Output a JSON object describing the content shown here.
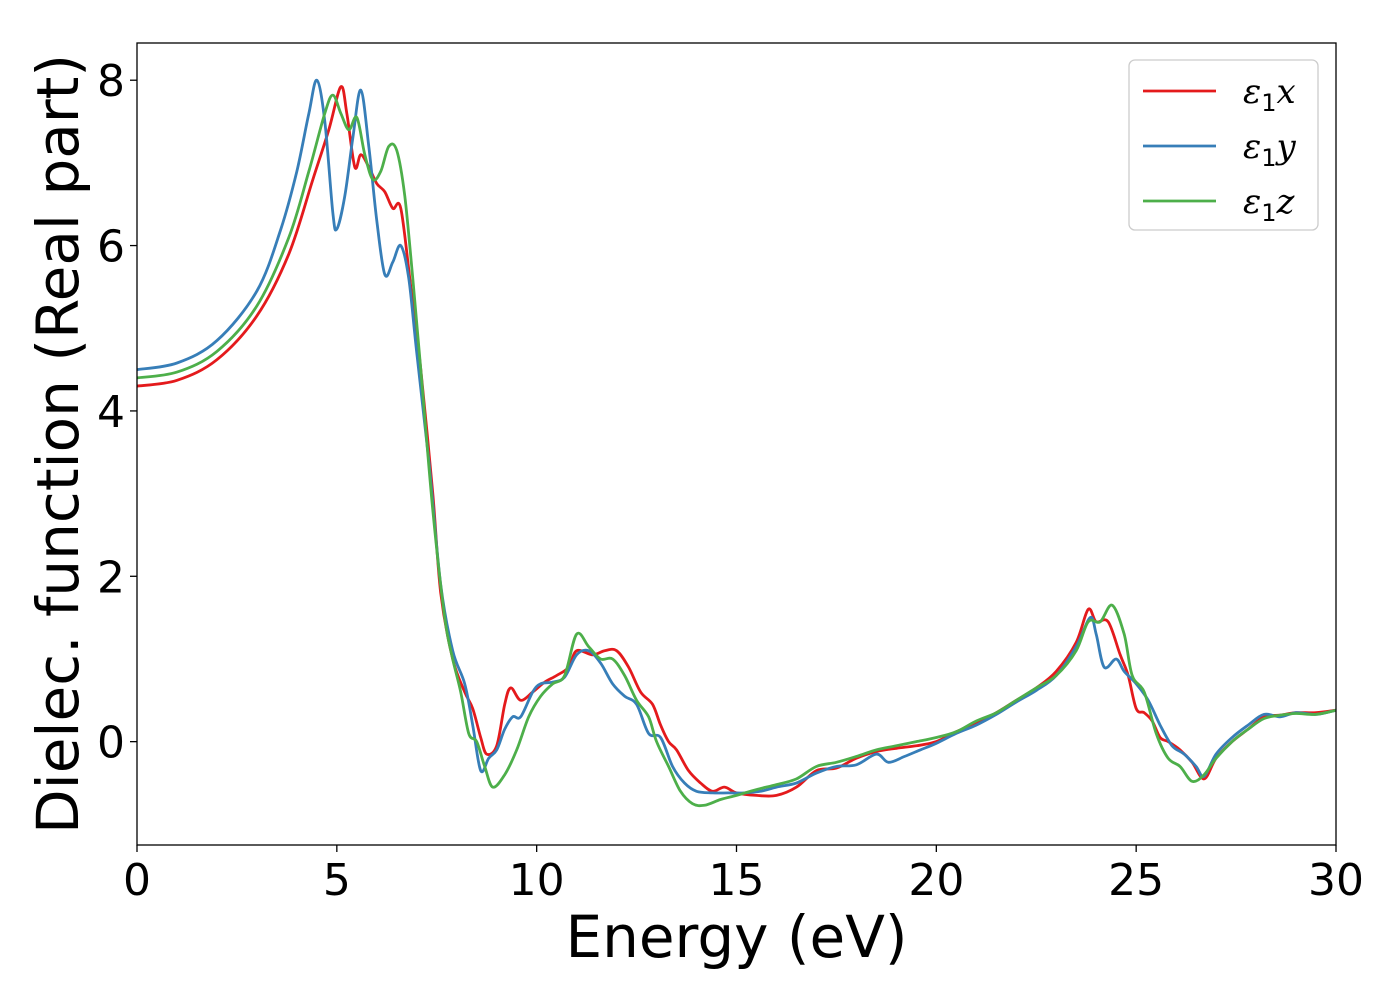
{
  "chart_data": {
    "type": "line",
    "xlabel": "Energy (eV)",
    "ylabel": "Dielec. function (Real part)",
    "xlim": [
      0,
      30
    ],
    "ylim": [
      -1.25,
      8.45
    ],
    "xticks": [
      0,
      5,
      10,
      15,
      20,
      25,
      30
    ],
    "yticks": [
      0,
      2,
      4,
      6,
      8
    ],
    "grid": false,
    "legend_position": "top-right",
    "series": [
      {
        "name": "ε1x",
        "symbol": "ε",
        "subscript": "1",
        "suffix": "x",
        "color": "#e41a1c",
        "points": [
          [
            0,
            4.3
          ],
          [
            1,
            4.37
          ],
          [
            2,
            4.62
          ],
          [
            3,
            5.15
          ],
          [
            3.8,
            5.9
          ],
          [
            4.4,
            6.8
          ],
          [
            4.8,
            7.4
          ],
          [
            5.1,
            7.92
          ],
          [
            5.25,
            7.6
          ],
          [
            5.45,
            6.95
          ],
          [
            5.6,
            7.1
          ],
          [
            5.8,
            6.95
          ],
          [
            6.0,
            6.75
          ],
          [
            6.2,
            6.65
          ],
          [
            6.4,
            6.45
          ],
          [
            6.6,
            6.45
          ],
          [
            6.85,
            5.5
          ],
          [
            7.1,
            4.5
          ],
          [
            7.4,
            3.0
          ],
          [
            7.6,
            1.8
          ],
          [
            7.9,
            1.0
          ],
          [
            8.2,
            0.6
          ],
          [
            8.4,
            0.4
          ],
          [
            8.6,
            0.05
          ],
          [
            8.75,
            -0.15
          ],
          [
            9.0,
            -0.05
          ],
          [
            9.2,
            0.45
          ],
          [
            9.35,
            0.65
          ],
          [
            9.6,
            0.5
          ],
          [
            9.9,
            0.6
          ],
          [
            10.2,
            0.72
          ],
          [
            10.5,
            0.8
          ],
          [
            10.8,
            0.9
          ],
          [
            11.0,
            1.1
          ],
          [
            11.4,
            1.05
          ],
          [
            11.7,
            1.1
          ],
          [
            12.0,
            1.1
          ],
          [
            12.3,
            0.9
          ],
          [
            12.6,
            0.6
          ],
          [
            12.9,
            0.45
          ],
          [
            13.1,
            0.2
          ],
          [
            13.3,
            0.0
          ],
          [
            13.5,
            -0.1
          ],
          [
            13.8,
            -0.35
          ],
          [
            14.1,
            -0.5
          ],
          [
            14.4,
            -0.6
          ],
          [
            14.7,
            -0.55
          ],
          [
            15.0,
            -0.62
          ],
          [
            15.5,
            -0.65
          ],
          [
            16.0,
            -0.65
          ],
          [
            16.5,
            -0.55
          ],
          [
            17.0,
            -0.35
          ],
          [
            17.5,
            -0.32
          ],
          [
            18.0,
            -0.2
          ],
          [
            18.5,
            -0.12
          ],
          [
            19.0,
            -0.08
          ],
          [
            19.5,
            -0.05
          ],
          [
            20.0,
            0.0
          ],
          [
            20.5,
            0.12
          ],
          [
            21.0,
            0.22
          ],
          [
            21.5,
            0.35
          ],
          [
            22.0,
            0.5
          ],
          [
            22.5,
            0.65
          ],
          [
            23.0,
            0.85
          ],
          [
            23.5,
            1.2
          ],
          [
            23.8,
            1.6
          ],
          [
            24.0,
            1.45
          ],
          [
            24.3,
            1.45
          ],
          [
            24.6,
            1.05
          ],
          [
            24.8,
            0.8
          ],
          [
            25.0,
            0.4
          ],
          [
            25.2,
            0.35
          ],
          [
            25.4,
            0.25
          ],
          [
            25.6,
            0.05
          ],
          [
            25.8,
            0.0
          ],
          [
            26.1,
            -0.1
          ],
          [
            26.4,
            -0.25
          ],
          [
            26.7,
            -0.45
          ],
          [
            27.0,
            -0.2
          ],
          [
            27.4,
            0.0
          ],
          [
            27.8,
            0.15
          ],
          [
            28.2,
            0.3
          ],
          [
            28.6,
            0.32
          ],
          [
            29.0,
            0.35
          ],
          [
            29.5,
            0.35
          ],
          [
            30.0,
            0.38
          ]
        ]
      },
      {
        "name": "ε1y",
        "symbol": "ε",
        "subscript": "1",
        "suffix": "y",
        "color": "#377eb8",
        "points": [
          [
            0,
            4.5
          ],
          [
            1,
            4.58
          ],
          [
            2,
            4.85
          ],
          [
            3,
            5.45
          ],
          [
            3.6,
            6.2
          ],
          [
            4.0,
            6.9
          ],
          [
            4.3,
            7.6
          ],
          [
            4.5,
            8.0
          ],
          [
            4.7,
            7.5
          ],
          [
            4.9,
            6.4
          ],
          [
            5.0,
            6.2
          ],
          [
            5.2,
            6.6
          ],
          [
            5.4,
            7.3
          ],
          [
            5.6,
            7.88
          ],
          [
            5.8,
            7.2
          ],
          [
            6.0,
            6.3
          ],
          [
            6.2,
            5.65
          ],
          [
            6.4,
            5.8
          ],
          [
            6.6,
            6.0
          ],
          [
            6.8,
            5.6
          ],
          [
            7.0,
            4.7
          ],
          [
            7.3,
            3.4
          ],
          [
            7.6,
            1.9
          ],
          [
            7.9,
            1.1
          ],
          [
            8.2,
            0.7
          ],
          [
            8.4,
            0.2
          ],
          [
            8.6,
            -0.35
          ],
          [
            8.8,
            -0.2
          ],
          [
            9.0,
            -0.1
          ],
          [
            9.2,
            0.15
          ],
          [
            9.4,
            0.3
          ],
          [
            9.6,
            0.3
          ],
          [
            9.9,
            0.6
          ],
          [
            10.1,
            0.7
          ],
          [
            10.4,
            0.72
          ],
          [
            10.7,
            0.78
          ],
          [
            11.0,
            1.05
          ],
          [
            11.3,
            1.1
          ],
          [
            11.6,
            0.95
          ],
          [
            11.9,
            0.7
          ],
          [
            12.2,
            0.55
          ],
          [
            12.5,
            0.45
          ],
          [
            12.8,
            0.1
          ],
          [
            13.1,
            0.05
          ],
          [
            13.4,
            -0.3
          ],
          [
            13.7,
            -0.5
          ],
          [
            14.0,
            -0.6
          ],
          [
            14.4,
            -0.62
          ],
          [
            14.8,
            -0.62
          ],
          [
            15.2,
            -0.62
          ],
          [
            15.6,
            -0.6
          ],
          [
            16.0,
            -0.55
          ],
          [
            16.5,
            -0.5
          ],
          [
            17.0,
            -0.38
          ],
          [
            17.5,
            -0.3
          ],
          [
            18.0,
            -0.28
          ],
          [
            18.5,
            -0.15
          ],
          [
            18.8,
            -0.25
          ],
          [
            19.2,
            -0.18
          ],
          [
            19.6,
            -0.1
          ],
          [
            20.0,
            -0.02
          ],
          [
            20.5,
            0.1
          ],
          [
            21.0,
            0.2
          ],
          [
            21.5,
            0.33
          ],
          [
            22.0,
            0.48
          ],
          [
            22.5,
            0.62
          ],
          [
            23.0,
            0.8
          ],
          [
            23.5,
            1.15
          ],
          [
            23.85,
            1.5
          ],
          [
            24.0,
            1.3
          ],
          [
            24.2,
            0.9
          ],
          [
            24.5,
            1.0
          ],
          [
            24.7,
            0.85
          ],
          [
            25.0,
            0.7
          ],
          [
            25.3,
            0.5
          ],
          [
            25.6,
            0.2
          ],
          [
            25.9,
            -0.05
          ],
          [
            26.2,
            -0.15
          ],
          [
            26.5,
            -0.3
          ],
          [
            26.7,
            -0.42
          ],
          [
            27.0,
            -0.15
          ],
          [
            27.4,
            0.05
          ],
          [
            27.8,
            0.2
          ],
          [
            28.2,
            0.33
          ],
          [
            28.6,
            0.3
          ],
          [
            29.0,
            0.35
          ],
          [
            29.5,
            0.33
          ],
          [
            30.0,
            0.38
          ]
        ]
      },
      {
        "name": "ε1z",
        "symbol": "ε",
        "subscript": "1",
        "suffix": "z",
        "color": "#4daf4a",
        "points": [
          [
            0,
            4.4
          ],
          [
            1,
            4.47
          ],
          [
            2,
            4.72
          ],
          [
            3,
            5.27
          ],
          [
            3.8,
            6.1
          ],
          [
            4.3,
            6.9
          ],
          [
            4.7,
            7.6
          ],
          [
            4.9,
            7.82
          ],
          [
            5.1,
            7.6
          ],
          [
            5.3,
            7.4
          ],
          [
            5.5,
            7.55
          ],
          [
            5.7,
            7.1
          ],
          [
            5.9,
            6.8
          ],
          [
            6.1,
            6.9
          ],
          [
            6.3,
            7.2
          ],
          [
            6.5,
            7.15
          ],
          [
            6.7,
            6.6
          ],
          [
            6.9,
            5.6
          ],
          [
            7.1,
            4.5
          ],
          [
            7.4,
            2.8
          ],
          [
            7.7,
            1.5
          ],
          [
            7.9,
            1.0
          ],
          [
            8.1,
            0.6
          ],
          [
            8.3,
            0.1
          ],
          [
            8.5,
            0.0
          ],
          [
            8.7,
            -0.3
          ],
          [
            8.9,
            -0.55
          ],
          [
            9.2,
            -0.4
          ],
          [
            9.5,
            -0.1
          ],
          [
            9.8,
            0.3
          ],
          [
            10.1,
            0.55
          ],
          [
            10.4,
            0.7
          ],
          [
            10.7,
            0.8
          ],
          [
            11.0,
            1.3
          ],
          [
            11.3,
            1.15
          ],
          [
            11.6,
            1.0
          ],
          [
            11.9,
            1.0
          ],
          [
            12.2,
            0.8
          ],
          [
            12.5,
            0.5
          ],
          [
            12.8,
            0.3
          ],
          [
            13.0,
            0.0
          ],
          [
            13.3,
            -0.3
          ],
          [
            13.6,
            -0.6
          ],
          [
            13.9,
            -0.75
          ],
          [
            14.2,
            -0.77
          ],
          [
            14.6,
            -0.7
          ],
          [
            15.0,
            -0.65
          ],
          [
            15.5,
            -0.58
          ],
          [
            16.0,
            -0.52
          ],
          [
            16.5,
            -0.45
          ],
          [
            17.0,
            -0.3
          ],
          [
            17.5,
            -0.25
          ],
          [
            18.0,
            -0.18
          ],
          [
            18.5,
            -0.1
          ],
          [
            19.0,
            -0.05
          ],
          [
            19.5,
            0.0
          ],
          [
            20.0,
            0.05
          ],
          [
            20.5,
            0.12
          ],
          [
            21.0,
            0.25
          ],
          [
            21.5,
            0.35
          ],
          [
            22.0,
            0.5
          ],
          [
            22.5,
            0.65
          ],
          [
            23.0,
            0.8
          ],
          [
            23.5,
            1.1
          ],
          [
            23.8,
            1.45
          ],
          [
            24.1,
            1.45
          ],
          [
            24.4,
            1.65
          ],
          [
            24.7,
            1.3
          ],
          [
            24.9,
            0.8
          ],
          [
            25.2,
            0.6
          ],
          [
            25.5,
            0.1
          ],
          [
            25.8,
            -0.2
          ],
          [
            26.1,
            -0.3
          ],
          [
            26.4,
            -0.48
          ],
          [
            26.7,
            -0.4
          ],
          [
            27.0,
            -0.2
          ],
          [
            27.4,
            0.0
          ],
          [
            27.8,
            0.15
          ],
          [
            28.2,
            0.28
          ],
          [
            28.6,
            0.32
          ],
          [
            29.0,
            0.34
          ],
          [
            29.5,
            0.33
          ],
          [
            30.0,
            0.38
          ]
        ]
      }
    ]
  }
}
